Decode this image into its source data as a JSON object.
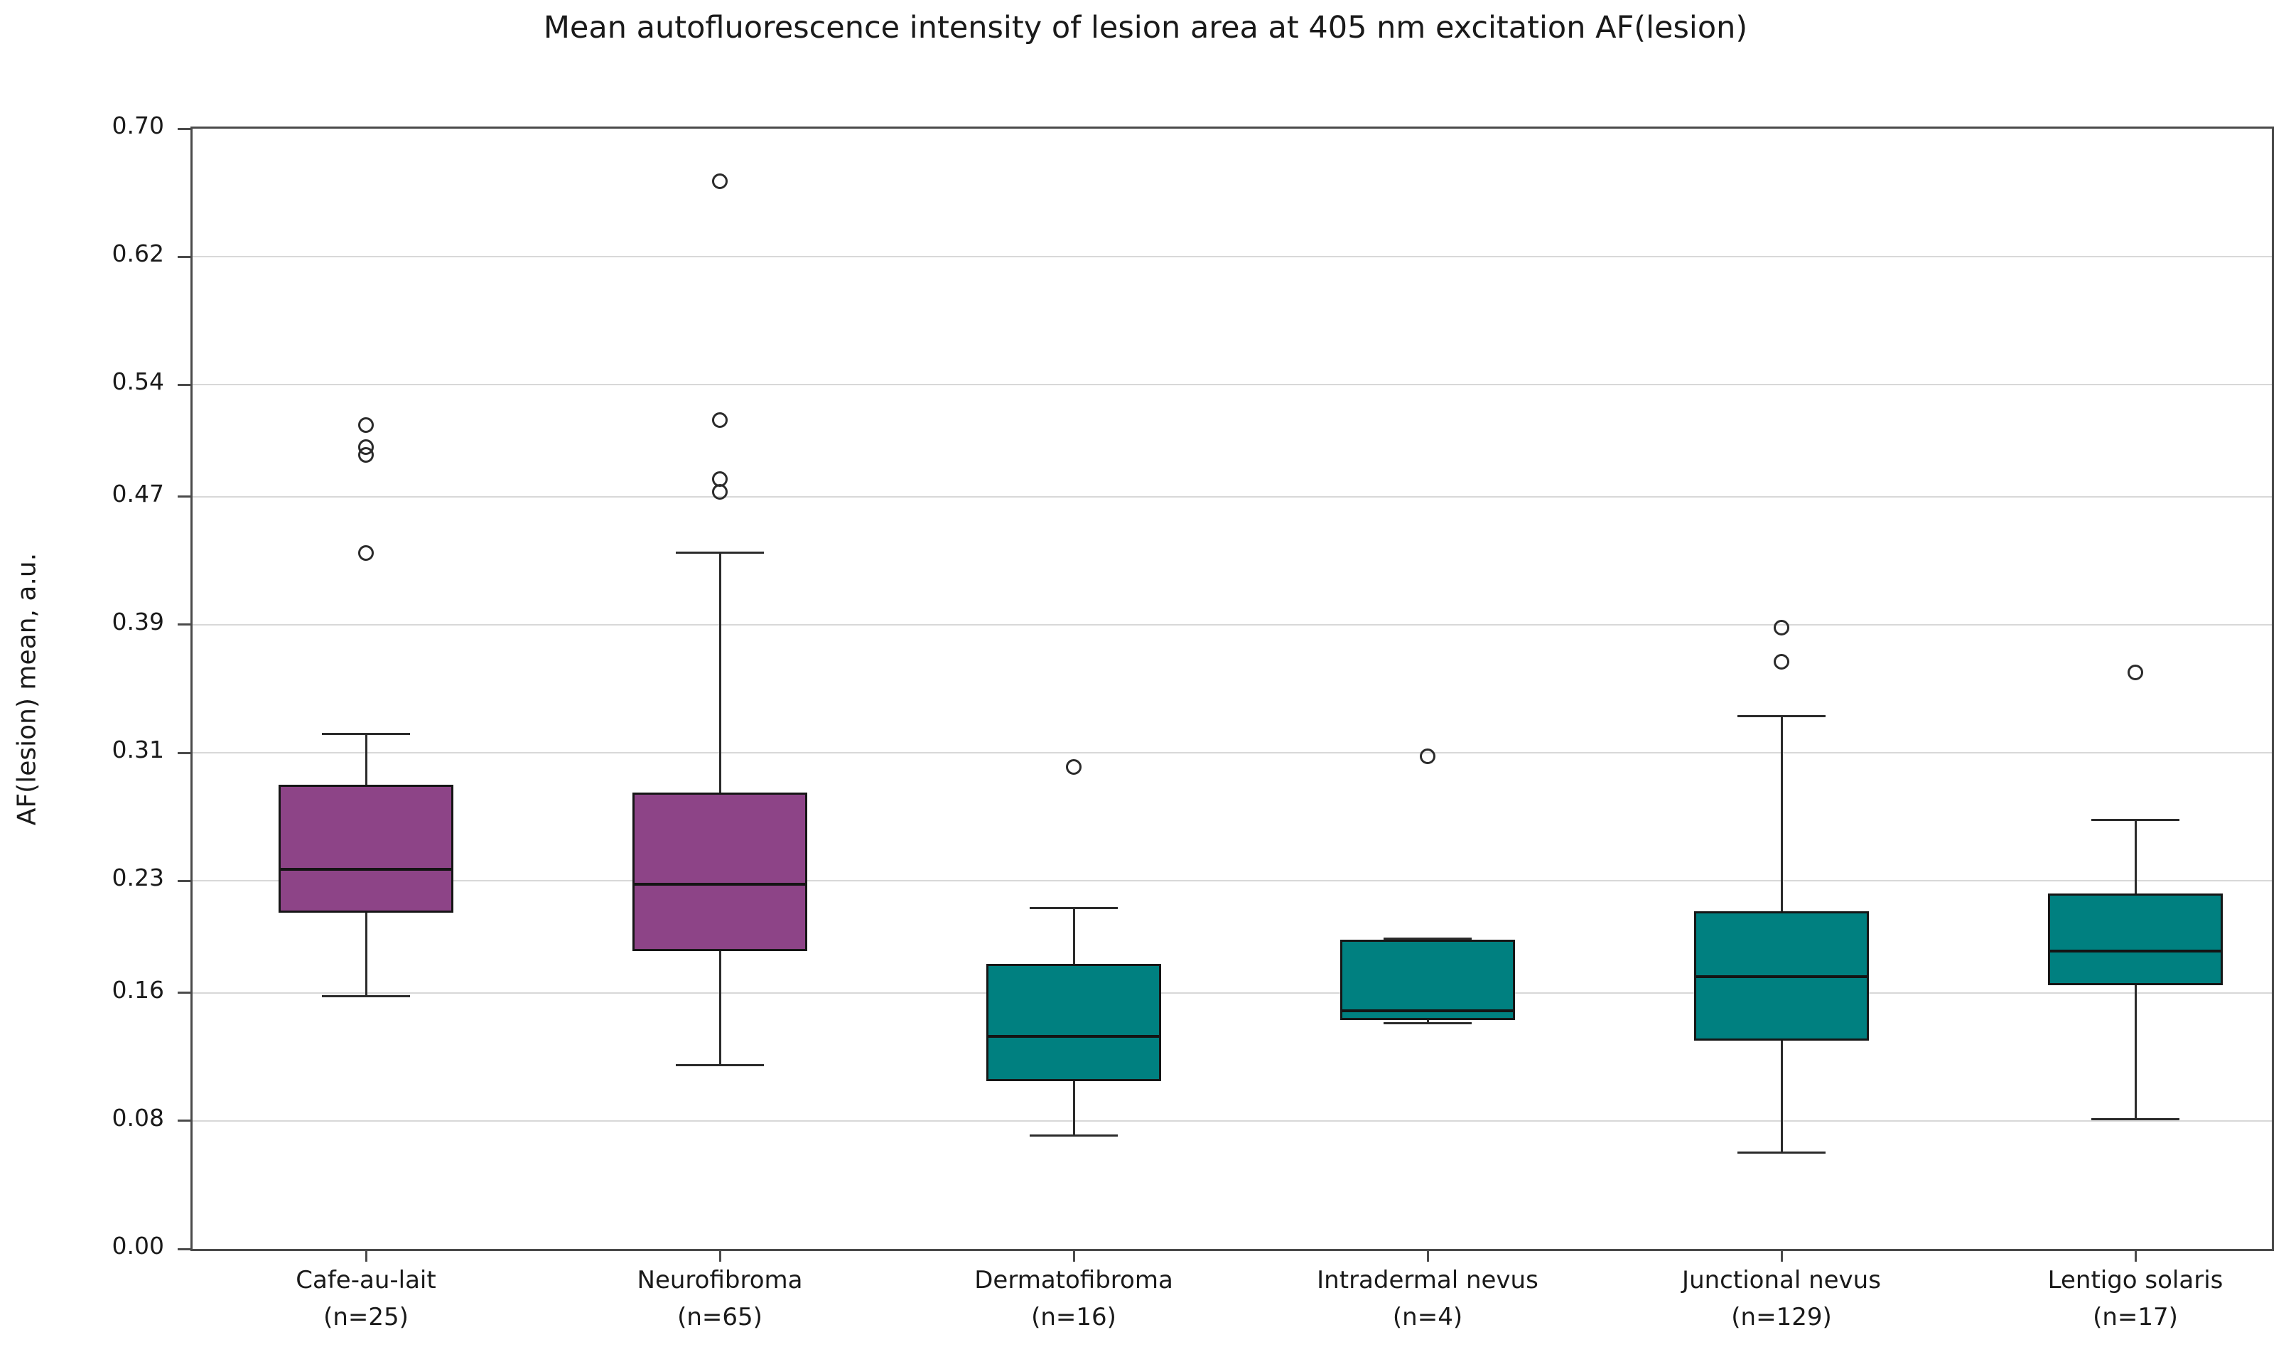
{
  "chart_data": {
    "type": "boxplot",
    "title": "Mean autofluorescence intensity of lesion area at 405 nm excitation AF(lesion)",
    "ylabel": "AF(lesion) mean, a.u.",
    "xlabel": "",
    "ylim": [
      0.0,
      0.7
    ],
    "yticks": [
      0.0,
      0.08,
      0.16,
      0.23,
      0.31,
      0.39,
      0.47,
      0.54,
      0.62,
      0.7
    ],
    "ytick_labels": [
      "0.00",
      "0.08",
      "0.16",
      "0.23",
      "0.31",
      "0.39",
      "0.47",
      "0.54",
      "0.62",
      "0.70"
    ],
    "grid": "horizontal",
    "legend": "none",
    "colors": {
      "purple_fill": "#8d4487",
      "teal_fill": "#008080",
      "spine": "#4a4a4a",
      "gridline": "#d8d8d8",
      "whisker": "#2b2b2b",
      "box_edge": "#161616",
      "text": "#1a1a1a"
    },
    "categories": [
      {
        "label": "Cafe-au-lait",
        "n_label": "(n=25)",
        "fill": "#8d4487",
        "whisker_low": 0.158,
        "q1": 0.21,
        "median": 0.237,
        "q3": 0.29,
        "whisker_high": 0.322,
        "outliers": [
          0.435,
          0.496,
          0.501,
          0.515
        ]
      },
      {
        "label": "Neurofibroma",
        "n_label": "(n=65)",
        "fill": "#8d4487",
        "whisker_low": 0.115,
        "q1": 0.186,
        "median": 0.228,
        "q3": 0.285,
        "whisker_high": 0.435,
        "outliers": [
          0.473,
          0.481,
          0.518,
          0.667
        ]
      },
      {
        "label": "Dermatofibroma",
        "n_label": "(n=16)",
        "fill": "#008080",
        "whisker_low": 0.071,
        "q1": 0.105,
        "median": 0.133,
        "q3": 0.178,
        "whisker_high": 0.213,
        "outliers": [
          0.301
        ]
      },
      {
        "label": "Intradermal nevus",
        "n_label": "(n=4)",
        "fill": "#008080",
        "whisker_low": 0.141,
        "q1": 0.143,
        "median": 0.149,
        "q3": 0.193,
        "whisker_high": 0.194,
        "outliers": [
          0.308
        ]
      },
      {
        "label": "Junctional nevus",
        "n_label": "(n=129)",
        "fill": "#008080",
        "whisker_low": 0.06,
        "q1": 0.13,
        "median": 0.17,
        "q3": 0.211,
        "whisker_high": 0.333,
        "outliers": [
          0.367,
          0.388
        ]
      },
      {
        "label": "Lentigo solaris",
        "n_label": "(n=17)",
        "fill": "#008080",
        "whisker_low": 0.081,
        "q1": 0.165,
        "median": 0.186,
        "q3": 0.222,
        "whisker_high": 0.268,
        "outliers": [
          0.36
        ]
      }
    ]
  }
}
